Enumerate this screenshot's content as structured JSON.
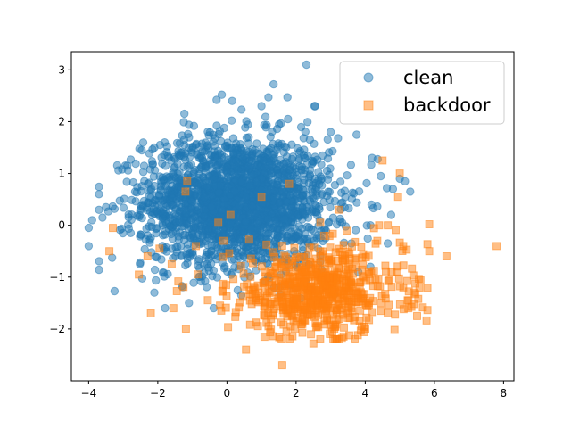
{
  "chart_data": {
    "type": "scatter",
    "title": "",
    "xlabel": "",
    "ylabel": "",
    "xlim": [
      -4.5,
      8.3
    ],
    "ylim": [
      -3.0,
      3.35
    ],
    "xticks": [
      -4,
      -2,
      0,
      2,
      4,
      6,
      8
    ],
    "yticks": [
      -2,
      -1,
      0,
      1,
      2,
      3
    ],
    "xtick_labels": [
      "−4",
      "−2",
      "0",
      "2",
      "4",
      "6",
      "8"
    ],
    "ytick_labels": [
      "−2",
      "−1",
      "0",
      "1",
      "2",
      "3"
    ],
    "grid": false,
    "legend_position": "top-right",
    "series": [
      {
        "name": "clean",
        "marker": "circle",
        "color": "#1f77b4",
        "alpha": 0.5,
        "cluster": {
          "n": 2200,
          "center": [
            0.3,
            0.45
          ],
          "spread": [
            1.35,
            0.62
          ]
        },
        "points": [
          [
            2.3,
            3.1
          ],
          [
            1.35,
            2.72
          ],
          [
            1.75,
            2.47
          ],
          [
            1.2,
            2.47
          ],
          [
            -0.15,
            2.52
          ],
          [
            0.15,
            2.4
          ],
          [
            2.55,
            2.3
          ],
          [
            -0.3,
            2.42
          ],
          [
            1.0,
            2.3
          ],
          [
            -3.6,
            0.15
          ],
          [
            -4.0,
            -0.05
          ],
          [
            -3.9,
            0.1
          ],
          [
            -3.5,
            0.35
          ],
          [
            -4.0,
            -0.4
          ],
          [
            -3.25,
            -1.27
          ],
          [
            -2.1,
            -1.3
          ],
          [
            -1.1,
            -1.5
          ],
          [
            -1.1,
            1.5
          ],
          [
            -2.1,
            1.5
          ],
          [
            3.0,
            1.8
          ],
          [
            3.75,
            1.75
          ],
          [
            4.2,
            1.3
          ],
          [
            4.8,
            0.7
          ],
          [
            5.0,
            0.9
          ],
          [
            5.15,
            0.85
          ],
          [
            5.3,
            0.65
          ],
          [
            4.75,
            0.2
          ],
          [
            4.65,
            -0.35
          ],
          [
            4.15,
            -0.8
          ],
          [
            3.8,
            -0.9
          ],
          [
            3.6,
            -0.35
          ],
          [
            4.15,
            0.0
          ],
          [
            -1.8,
            1.6
          ],
          [
            2.7,
            -0.7
          ],
          [
            4.45,
            0.95
          ]
        ]
      },
      {
        "name": "backdoor",
        "marker": "square",
        "color": "#ff7f0e",
        "alpha": 0.5,
        "cluster": {
          "n": 650,
          "center": [
            2.6,
            -1.28
          ],
          "spread": [
            1.25,
            0.42
          ]
        },
        "points": [
          [
            1.6,
            -2.7
          ],
          [
            0.55,
            -2.4
          ],
          [
            2.5,
            -2.28
          ],
          [
            7.8,
            -0.4
          ],
          [
            6.35,
            -0.6
          ],
          [
            5.85,
            0.02
          ],
          [
            5.85,
            -0.5
          ],
          [
            5.5,
            -1.75
          ],
          [
            5.25,
            -1.45
          ],
          [
            5.1,
            -0.4
          ],
          [
            5.0,
            1.0
          ],
          [
            4.95,
            0.55
          ],
          [
            4.5,
            1.25
          ],
          [
            1.8,
            0.8
          ],
          [
            1.0,
            0.55
          ],
          [
            -1.15,
            0.85
          ],
          [
            -1.2,
            0.65
          ],
          [
            -2.2,
            -1.7
          ],
          [
            -2.55,
            -0.95
          ],
          [
            -3.4,
            -0.5
          ],
          [
            -3.3,
            -0.05
          ],
          [
            -1.55,
            -1.6
          ],
          [
            -1.45,
            -1.27
          ],
          [
            -1.95,
            -0.45
          ],
          [
            -1.6,
            -0.75
          ],
          [
            -0.25,
            0.05
          ],
          [
            0.1,
            0.2
          ],
          [
            -0.1,
            -0.3
          ],
          [
            3.25,
            0.3
          ],
          [
            2.7,
            0.05
          ],
          [
            4.35,
            -0.3
          ],
          [
            4.4,
            0.0
          ],
          [
            4.65,
            0.0
          ],
          [
            3.6,
            -1.6
          ],
          [
            3.9,
            -1.95
          ],
          [
            4.45,
            -1.65
          ],
          [
            5.4,
            -1.3
          ],
          [
            5.1,
            -1.2
          ],
          [
            -2.3,
            -0.6
          ],
          [
            -0.9,
            -0.4
          ]
        ]
      }
    ]
  }
}
